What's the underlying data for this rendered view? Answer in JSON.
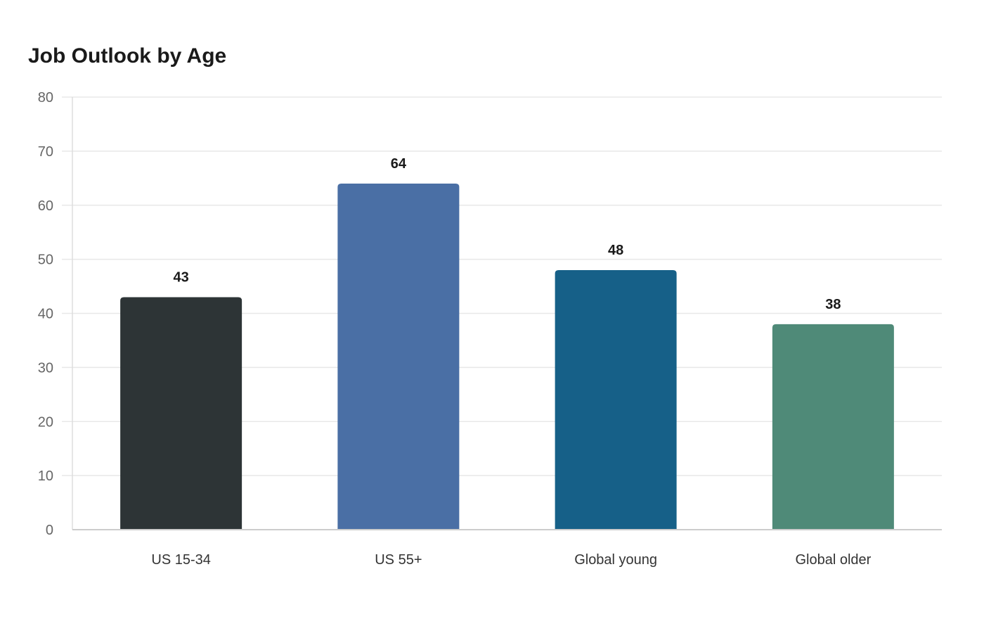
{
  "chart_data": {
    "type": "bar",
    "title": "Job Outlook by Age",
    "xlabel": "",
    "ylabel": "",
    "categories": [
      "US 15-34",
      "US 55+",
      "Global young",
      "Global older"
    ],
    "values": [
      43,
      64,
      48,
      38
    ],
    "colors": [
      "#2d3436",
      "#4a6fa5",
      "#166088",
      "#4f8a78"
    ],
    "ylim": [
      0,
      80
    ],
    "yticks": [
      0,
      10,
      20,
      30,
      40,
      50,
      60,
      70,
      80
    ],
    "grid": true,
    "data_labels": true
  }
}
